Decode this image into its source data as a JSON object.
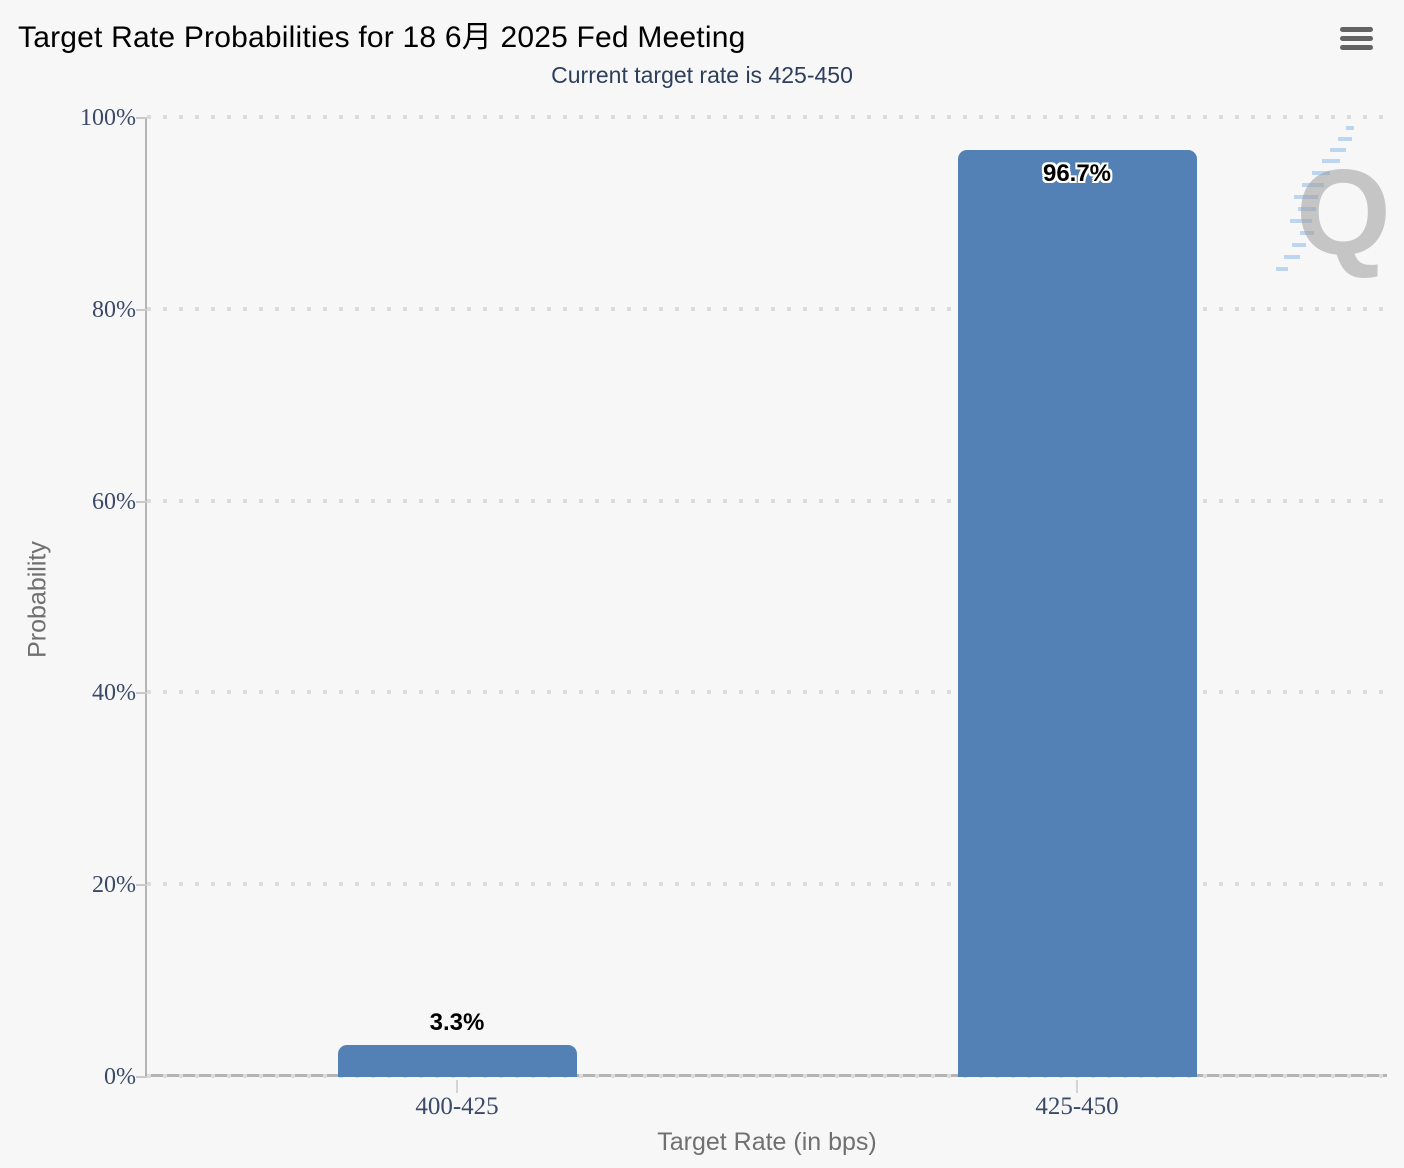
{
  "header": {
    "menu_icon": "hamburger-menu-icon"
  },
  "colors": {
    "background": "#f7f7f7",
    "bar": "#5381b5",
    "title": "#000000",
    "subtitle": "#2e3f5c",
    "tick_label": "#3b4a68",
    "axis_title": "#707070",
    "grid_dot": "#dcdcdc",
    "axis_line": "#b4b4b4",
    "menu_icon": "#636363",
    "watermark_q": "#a9a9a9",
    "watermark_dash": "#8fbbea"
  },
  "chart_data": {
    "type": "bar",
    "title": "Target Rate Probabilities for 18 6月 2025 Fed Meeting",
    "subtitle": "Current target rate is 425-450",
    "categories": [
      "400-425",
      "425-450"
    ],
    "values": [
      3.3,
      96.7
    ],
    "data_labels": [
      "3.3%",
      "96.7%"
    ],
    "xlabel": "Target Rate (in bps)",
    "ylabel": "Probability",
    "ylim": [
      0,
      100
    ],
    "yticks": [
      "0%",
      "20%",
      "40%",
      "60%",
      "80%",
      "100%"
    ],
    "grid": "horizontal-dotted",
    "legend": "none",
    "watermark": "Q logo"
  }
}
